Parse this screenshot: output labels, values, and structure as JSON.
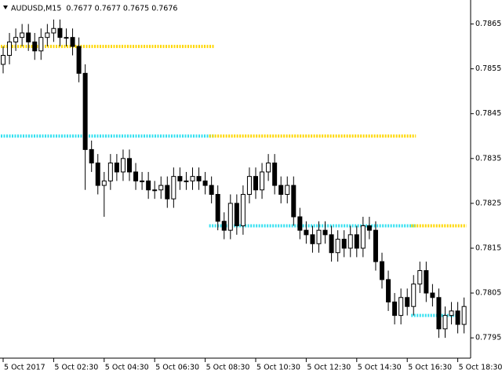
{
  "chart_data": {
    "type": "candlestick",
    "title": "AUDUSD,M15  0.7677 0.7677 0.7675 0.7676",
    "ohlc": [
      [
        0.7856,
        0.786,
        0.7854,
        0.7858
      ],
      [
        0.7858,
        0.7863,
        0.7856,
        0.7861
      ],
      [
        0.7861,
        0.7864,
        0.7859,
        0.7862
      ],
      [
        0.7862,
        0.7865,
        0.786,
        0.7863
      ],
      [
        0.7863,
        0.7865,
        0.7859,
        0.7861
      ],
      [
        0.7861,
        0.7863,
        0.7857,
        0.7859
      ],
      [
        0.7859,
        0.7864,
        0.7857,
        0.7862
      ],
      [
        0.7862,
        0.7865,
        0.786,
        0.7863
      ],
      [
        0.7863,
        0.7866,
        0.7861,
        0.7864
      ],
      [
        0.7864,
        0.7866,
        0.786,
        0.7862
      ],
      [
        0.7862,
        0.7864,
        0.786,
        0.7862
      ],
      [
        0.7862,
        0.7864,
        0.7858,
        0.786
      ],
      [
        0.786,
        0.7862,
        0.7852,
        0.7854
      ],
      [
        0.7854,
        0.7856,
        0.7828,
        0.7837
      ],
      [
        0.7837,
        0.7839,
        0.7832,
        0.7834
      ],
      [
        0.7834,
        0.7836,
        0.7827,
        0.7829
      ],
      [
        0.7829,
        0.7832,
        0.7822,
        0.783
      ],
      [
        0.783,
        0.7836,
        0.7828,
        0.7834
      ],
      [
        0.7834,
        0.7836,
        0.783,
        0.7832
      ],
      [
        0.7832,
        0.7837,
        0.783,
        0.7835
      ],
      [
        0.7835,
        0.7837,
        0.783,
        0.7832
      ],
      [
        0.7832,
        0.7834,
        0.7828,
        0.783
      ],
      [
        0.783,
        0.7832,
        0.7828,
        0.783
      ],
      [
        0.783,
        0.7832,
        0.7826,
        0.7828
      ],
      [
        0.7828,
        0.783,
        0.7826,
        0.7828
      ],
      [
        0.7828,
        0.7831,
        0.7826,
        0.7829
      ],
      [
        0.7829,
        0.7831,
        0.7824,
        0.7826
      ],
      [
        0.7826,
        0.7833,
        0.7824,
        0.7831
      ],
      [
        0.7831,
        0.7833,
        0.7828,
        0.783
      ],
      [
        0.783,
        0.7832,
        0.7828,
        0.783
      ],
      [
        0.783,
        0.7833,
        0.7828,
        0.7831
      ],
      [
        0.7831,
        0.7833,
        0.7828,
        0.783
      ],
      [
        0.783,
        0.7832,
        0.7827,
        0.7829
      ],
      [
        0.7829,
        0.7831,
        0.7825,
        0.7827
      ],
      [
        0.7827,
        0.7829,
        0.7819,
        0.7821
      ],
      [
        0.7821,
        0.7823,
        0.7817,
        0.7819
      ],
      [
        0.7819,
        0.7827,
        0.7817,
        0.7825
      ],
      [
        0.7825,
        0.7827,
        0.7818,
        0.782
      ],
      [
        0.782,
        0.7829,
        0.7818,
        0.7827
      ],
      [
        0.7827,
        0.7833,
        0.7825,
        0.7831
      ],
      [
        0.7831,
        0.7833,
        0.7826,
        0.7828
      ],
      [
        0.7828,
        0.7834,
        0.7826,
        0.7832
      ],
      [
        0.7832,
        0.7836,
        0.783,
        0.7834
      ],
      [
        0.7834,
        0.7836,
        0.7827,
        0.7829
      ],
      [
        0.7829,
        0.7831,
        0.7825,
        0.7827
      ],
      [
        0.7827,
        0.7831,
        0.7825,
        0.7829
      ],
      [
        0.7829,
        0.7831,
        0.782,
        0.7822
      ],
      [
        0.7822,
        0.7824,
        0.7817,
        0.7819
      ],
      [
        0.7819,
        0.7821,
        0.7816,
        0.7818
      ],
      [
        0.7818,
        0.782,
        0.7814,
        0.7816
      ],
      [
        0.7816,
        0.7821,
        0.7814,
        0.7819
      ],
      [
        0.7819,
        0.7821,
        0.7816,
        0.7818
      ],
      [
        0.7818,
        0.782,
        0.7812,
        0.7814
      ],
      [
        0.7814,
        0.7819,
        0.7812,
        0.7817
      ],
      [
        0.7817,
        0.7819,
        0.7813,
        0.7815
      ],
      [
        0.7815,
        0.782,
        0.7813,
        0.7818
      ],
      [
        0.7818,
        0.782,
        0.7813,
        0.7815
      ],
      [
        0.7815,
        0.7822,
        0.7813,
        0.782
      ],
      [
        0.782,
        0.7822,
        0.7817,
        0.7819
      ],
      [
        0.7819,
        0.7821,
        0.781,
        0.7812
      ],
      [
        0.7812,
        0.7814,
        0.7806,
        0.7808
      ],
      [
        0.7808,
        0.781,
        0.7801,
        0.7803
      ],
      [
        0.7803,
        0.7805,
        0.7798,
        0.78
      ],
      [
        0.78,
        0.7806,
        0.7798,
        0.7804
      ],
      [
        0.7804,
        0.7806,
        0.78,
        0.7802
      ],
      [
        0.7802,
        0.7809,
        0.78,
        0.7807
      ],
      [
        0.7807,
        0.7812,
        0.7805,
        0.781
      ],
      [
        0.781,
        0.7812,
        0.7803,
        0.7805
      ],
      [
        0.7805,
        0.7807,
        0.7802,
        0.7804
      ],
      [
        0.7804,
        0.7806,
        0.7795,
        0.7797
      ],
      [
        0.7797,
        0.7802,
        0.7795,
        0.78
      ],
      [
        0.78,
        0.7803,
        0.7798,
        0.7801
      ],
      [
        0.7801,
        0.7803,
        0.7796,
        0.7798
      ],
      [
        0.7798,
        0.7804,
        0.7796,
        0.7802
      ]
    ],
    "bull_color": "#ffffff",
    "bear_color": "#000000",
    "levels": [
      {
        "value": 0.786,
        "color": "#ffd700",
        "from": 0,
        "to": 33
      },
      {
        "value": 0.784,
        "color": "#33e0f0",
        "from": 0,
        "to": 33
      },
      {
        "value": 0.784,
        "color": "#ffd700",
        "from": 33,
        "to": 65
      },
      {
        "value": 0.782,
        "color": "#33e0f0",
        "from": 33,
        "to": 65
      },
      {
        "value": 0.782,
        "color": "#ffd700",
        "from": 65,
        "to": 73
      },
      {
        "value": 0.78,
        "color": "#33e0f0",
        "from": 65,
        "to": 72
      }
    ],
    "ylim": [
      0.7791,
      0.787
    ],
    "yticks": [
      0.7865,
      0.7855,
      0.7845,
      0.7835,
      0.7825,
      0.7815,
      0.7805,
      0.7795
    ],
    "xticks": [
      {
        "value": 0,
        "label": "5 Oct 2017"
      },
      {
        "value": 8,
        "label": "5 Oct 02:30"
      },
      {
        "value": 16,
        "label": "5 Oct 04:30"
      },
      {
        "value": 24,
        "label": "5 Oct 06:30"
      },
      {
        "value": 32,
        "label": "5 Oct 08:30"
      },
      {
        "value": 40,
        "label": "5 Oct 10:30"
      },
      {
        "value": 48,
        "label": "5 Oct 12:30"
      },
      {
        "value": 56,
        "label": "5 Oct 14:30"
      },
      {
        "value": 64,
        "label": "5 Oct 16:30"
      },
      {
        "value": 72,
        "label": "5 Oct 18:30"
      }
    ]
  }
}
